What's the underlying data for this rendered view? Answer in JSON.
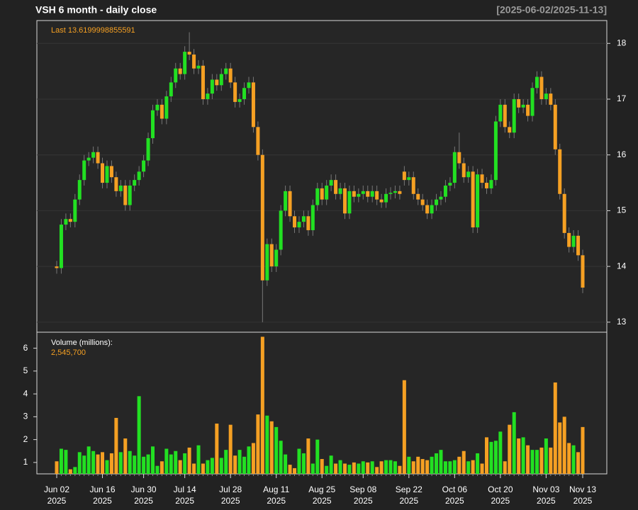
{
  "chart_data": {
    "type": "candlestick",
    "title": "VSH  6 month - daily close",
    "date_range": "[2025-06-02/2025-11-13]",
    "last_label": "Last 13.6199998855591",
    "volume_title": "Volume (millions):",
    "volume_last_label": "2,545,700",
    "up_color": "#22e022",
    "down_color": "#f5a023",
    "grid": true,
    "categories": [
      "Jun 02\n2025",
      null,
      null,
      null,
      null,
      null,
      null,
      null,
      null,
      null,
      "Jun 16\n2025",
      null,
      null,
      null,
      null,
      null,
      null,
      null,
      null,
      "Jun 30\n2025",
      null,
      null,
      null,
      null,
      null,
      null,
      null,
      null,
      "Jul 14\n2025",
      null,
      null,
      null,
      null,
      null,
      null,
      null,
      null,
      null,
      "Jul 28\n2025",
      null,
      null,
      null,
      null,
      null,
      null,
      null,
      null,
      null,
      "Aug 11\n2025",
      null,
      null,
      null,
      null,
      null,
      null,
      null,
      null,
      null,
      "Aug 25\n2025",
      null,
      null,
      null,
      null,
      null,
      null,
      null,
      null,
      "Sep 08\n2025",
      null,
      null,
      null,
      null,
      null,
      null,
      null,
      null,
      null,
      "Sep 22\n2025",
      null,
      null,
      null,
      null,
      null,
      null,
      null,
      null,
      null,
      "Oct 06\n2025",
      null,
      null,
      null,
      null,
      null,
      null,
      null,
      null,
      null,
      "Oct 20\n2025",
      null,
      null,
      null,
      null,
      null,
      null,
      null,
      null,
      null,
      "Nov 03\n2025",
      null,
      null,
      null,
      null,
      null,
      null,
      null,
      "Nov 13\n2025"
    ],
    "open": [
      14.0,
      13.97,
      14.75,
      14.85,
      14.8,
      15.2,
      15.55,
      15.9,
      15.95,
      16.05,
      15.85,
      15.5,
      15.8,
      15.6,
      15.35,
      15.45,
      15.1,
      15.45,
      15.55,
      15.7,
      15.9,
      16.3,
      16.8,
      16.9,
      16.65,
      17.05,
      17.3,
      17.55,
      17.45,
      17.85,
      17.8,
      17.55,
      17.6,
      17.0,
      17.1,
      17.35,
      17.25,
      17.45,
      17.55,
      17.3,
      16.95,
      17.0,
      17.2,
      17.3,
      16.5,
      16.0,
      13.75,
      14.4,
      14.0,
      14.3,
      15.0,
      15.35,
      14.9,
      14.7,
      14.8,
      14.9,
      14.65,
      15.1,
      15.4,
      15.2,
      15.45,
      15.55,
      15.3,
      15.4,
      14.95,
      15.35,
      15.25,
      15.3,
      15.35,
      15.25,
      15.35,
      15.2,
      15.15,
      15.3,
      15.32,
      15.35,
      15.7,
      15.55,
      15.6,
      15.3,
      15.2,
      15.1,
      14.95,
      15.1,
      15.2,
      15.25,
      15.45,
      15.5,
      16.05,
      15.85,
      15.6,
      15.7,
      14.7,
      15.65,
      15.5,
      15.4,
      15.55,
      16.6,
      16.9,
      16.5,
      16.4,
      17.0,
      16.85,
      16.9,
      16.7,
      17.2,
      17.4,
      17.0,
      17.1,
      16.9,
      16.1,
      15.3,
      14.6,
      14.35,
      14.55,
      14.2
    ],
    "high": [
      14.1,
      14.85,
      14.95,
      14.95,
      15.3,
      15.65,
      16.0,
      16.05,
      16.15,
      16.15,
      15.95,
      15.9,
      15.9,
      15.7,
      15.55,
      15.55,
      15.55,
      15.65,
      15.8,
      16.0,
      16.4,
      16.9,
      17.0,
      17.0,
      17.15,
      17.4,
      17.65,
      17.65,
      17.95,
      18.2,
      17.9,
      17.7,
      17.7,
      17.2,
      17.45,
      17.45,
      17.55,
      17.65,
      17.65,
      17.4,
      17.1,
      17.3,
      17.4,
      17.4,
      16.6,
      16.1,
      14.5,
      14.5,
      14.4,
      15.1,
      15.45,
      15.45,
      15.0,
      14.9,
      15.0,
      15.0,
      15.2,
      15.5,
      15.5,
      15.55,
      15.65,
      15.65,
      15.5,
      15.5,
      15.45,
      15.45,
      15.4,
      15.45,
      15.45,
      15.45,
      15.45,
      15.3,
      15.4,
      15.42,
      15.45,
      15.45,
      15.8,
      15.7,
      15.7,
      15.4,
      15.3,
      15.2,
      15.2,
      15.3,
      15.35,
      15.55,
      15.6,
      16.15,
      16.4,
      15.95,
      15.8,
      15.8,
      15.75,
      15.75,
      15.6,
      15.65,
      16.7,
      17.0,
      17.0,
      16.6,
      17.1,
      17.1,
      17.0,
      17.0,
      17.3,
      17.5,
      17.5,
      17.2,
      17.2,
      17.0,
      16.2,
      15.4,
      14.7,
      14.65,
      14.65,
      14.3
    ],
    "low": [
      13.87,
      13.87,
      14.65,
      14.7,
      14.7,
      15.1,
      15.45,
      15.8,
      15.85,
      15.75,
      15.4,
      15.4,
      15.5,
      15.25,
      15.25,
      15.0,
      15.0,
      15.35,
      15.45,
      15.6,
      15.8,
      16.2,
      16.7,
      16.55,
      16.55,
      16.95,
      17.2,
      17.35,
      17.35,
      17.7,
      17.45,
      17.45,
      16.9,
      16.9,
      17.0,
      17.15,
      17.15,
      17.35,
      17.2,
      16.85,
      16.85,
      16.9,
      17.1,
      16.4,
      15.9,
      13.0,
      13.65,
      13.9,
      13.9,
      14.2,
      14.9,
      14.8,
      14.6,
      14.6,
      14.7,
      14.55,
      14.55,
      15.0,
      15.1,
      15.1,
      15.35,
      15.2,
      15.2,
      14.85,
      14.85,
      15.15,
      15.15,
      15.2,
      15.15,
      15.15,
      15.1,
      15.05,
      15.05,
      15.2,
      15.22,
      15.2,
      15.45,
      15.45,
      15.2,
      15.1,
      15.0,
      14.85,
      14.85,
      15.0,
      15.1,
      15.15,
      15.35,
      15.4,
      15.75,
      15.5,
      15.5,
      14.6,
      14.6,
      15.4,
      15.3,
      15.3,
      15.45,
      16.5,
      16.4,
      16.3,
      16.3,
      16.75,
      16.75,
      16.6,
      16.6,
      17.1,
      16.9,
      16.9,
      16.8,
      16.0,
      15.2,
      14.5,
      14.25,
      14.25,
      14.1,
      13.52
    ],
    "close": [
      13.97,
      14.75,
      14.85,
      14.8,
      15.2,
      15.55,
      15.9,
      15.95,
      16.05,
      15.85,
      15.5,
      15.8,
      15.6,
      15.35,
      15.45,
      15.1,
      15.45,
      15.55,
      15.7,
      15.9,
      16.3,
      16.8,
      16.9,
      16.65,
      17.05,
      17.3,
      17.55,
      17.45,
      17.85,
      17.8,
      17.55,
      17.6,
      17.0,
      17.1,
      17.35,
      17.25,
      17.45,
      17.55,
      17.3,
      16.95,
      17.0,
      17.2,
      17.3,
      16.5,
      16.0,
      13.75,
      14.4,
      14.0,
      14.3,
      15.0,
      15.35,
      14.9,
      14.7,
      14.8,
      14.9,
      14.65,
      15.1,
      15.4,
      15.2,
      15.45,
      15.55,
      15.3,
      15.4,
      14.95,
      15.35,
      15.25,
      15.3,
      15.35,
      15.25,
      15.35,
      15.2,
      15.15,
      15.3,
      15.32,
      15.35,
      15.3,
      15.55,
      15.6,
      15.3,
      15.2,
      15.1,
      14.95,
      15.1,
      15.2,
      15.25,
      15.45,
      15.5,
      16.05,
      15.85,
      15.6,
      15.7,
      14.7,
      15.65,
      15.5,
      15.4,
      15.55,
      16.6,
      16.9,
      16.5,
      16.4,
      17.0,
      16.85,
      16.9,
      16.7,
      17.2,
      17.4,
      17.0,
      17.1,
      16.9,
      16.1,
      15.3,
      14.6,
      14.35,
      14.55,
      14.2,
      13.62
    ],
    "volume": [
      1.05,
      1.6,
      1.55,
      0.7,
      0.8,
      1.45,
      1.3,
      1.7,
      1.5,
      1.35,
      1.45,
      1.1,
      1.4,
      2.95,
      1.45,
      2.05,
      1.5,
      1.3,
      3.9,
      1.25,
      1.35,
      1.7,
      0.85,
      1.05,
      1.6,
      1.35,
      1.5,
      1.1,
      1.4,
      1.65,
      0.95,
      1.75,
      0.95,
      1.1,
      1.2,
      2.7,
      1.2,
      1.55,
      2.65,
      1.3,
      1.55,
      1.25,
      1.7,
      1.85,
      3.1,
      6.5,
      3.05,
      2.8,
      2.55,
      1.95,
      1.35,
      0.9,
      0.75,
      1.6,
      1.4,
      2.05,
      0.95,
      2.0,
      1.15,
      0.85,
      1.3,
      0.95,
      1.1,
      0.95,
      0.9,
      1.0,
      0.95,
      1.05,
      1.0,
      1.05,
      0.8,
      1.05,
      1.1,
      1.1,
      1.05,
      0.85,
      4.6,
      1.25,
      1.05,
      1.25,
      1.15,
      1.1,
      1.25,
      1.4,
      1.55,
      1.05,
      1.05,
      1.1,
      1.25,
      1.5,
      1.05,
      1.1,
      1.4,
      0.95,
      2.1,
      1.9,
      1.95,
      2.35,
      1.05,
      2.65,
      3.2,
      2.05,
      2.1,
      1.75,
      1.55,
      1.55,
      1.65,
      2.05,
      1.65,
      4.5,
      2.75,
      3.0,
      1.85,
      1.75,
      1.45,
      2.55
    ],
    "ylim": [
      12.82,
      18.41
    ],
    "yticks": [
      13,
      14,
      15,
      16,
      17,
      18
    ],
    "volume_ylim": [
      0.5,
      6.7
    ],
    "volume_yticks": [
      1,
      2,
      3,
      4,
      5,
      6
    ]
  }
}
